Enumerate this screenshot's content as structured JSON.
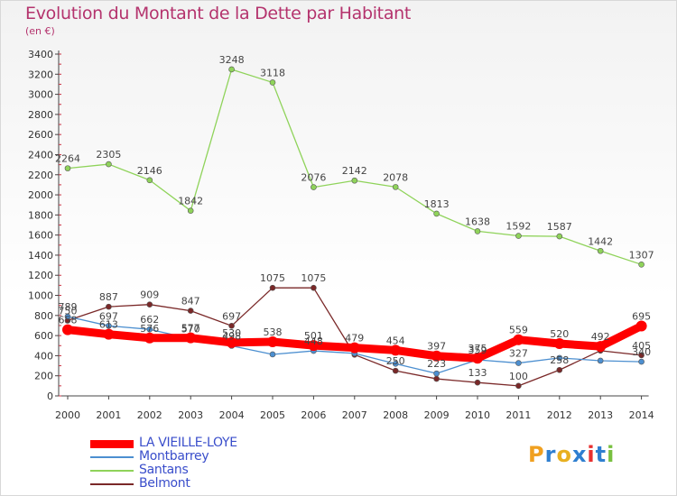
{
  "title": "Evolution du Montant de la Dette par Habitant",
  "unit": "(en €)",
  "logo": {
    "text": "Proxiti",
    "colors": [
      "#f0a020",
      "#2f7fd0",
      "#e8b020",
      "#2f7fd0",
      "#e83030",
      "#2f7fd0",
      "#78c040"
    ]
  },
  "chart_data": {
    "type": "line",
    "title": "Evolution du Montant de la Dette par Habitant",
    "ylabel": "(en €)",
    "xlabel": "",
    "x": [
      "2000",
      "2001",
      "2002",
      "2003",
      "2004",
      "2005",
      "2006",
      "2007",
      "2008",
      "2009",
      "2010",
      "2011",
      "2012",
      "2013",
      "2014"
    ],
    "yticks": [
      0,
      200,
      400,
      600,
      800,
      1000,
      1200,
      1400,
      1600,
      1800,
      2000,
      2200,
      2400,
      2600,
      2800,
      3000,
      3200,
      3400
    ],
    "ylim": [
      0,
      3400
    ],
    "grid": false,
    "legend": "bottom-left",
    "series": [
      {
        "name": "Santans",
        "color": "#8fd35a",
        "width": 1.3,
        "dot": 3,
        "values": [
          2264,
          2305,
          2146,
          1842,
          3248,
          3118,
          2076,
          2142,
          2078,
          1813,
          1638,
          1592,
          1587,
          1442,
          1307
        ],
        "labels": [
          "2264",
          "2305",
          "2146",
          "1842",
          "3248",
          "3118",
          "2076",
          "2142",
          "2078",
          "1813",
          "1638",
          "1592",
          "1587",
          "1442",
          "1307"
        ]
      },
      {
        "name": "Belmont",
        "color": "#7a2828",
        "width": 1.3,
        "dot": 3,
        "values": [
          750,
          887,
          909,
          847,
          697,
          1075,
          1075,
          410,
          250,
          170,
          133,
          100,
          258,
          450,
          405
        ],
        "labels": [
          "750",
          "887",
          "909",
          "847",
          "697",
          "1075",
          "1075",
          "",
          "250",
          "",
          "133",
          "100",
          "258",
          "",
          "405"
        ]
      },
      {
        "name": "Montbarrey",
        "color": "#4c8fd0",
        "width": 1.3,
        "dot": 3,
        "values": [
          789,
          697,
          662,
          570,
          498,
          413,
          448,
          423,
          320,
          223,
          359,
          327,
          378,
          350,
          340
        ],
        "labels": [
          "789",
          "697",
          "662",
          "570",
          "498",
          "",
          "448",
          "",
          "",
          "223",
          "359",
          "327",
          "",
          "",
          "340"
        ]
      },
      {
        "name": "LA VIEILLE-LOYE",
        "color": "#ff0000",
        "width": 9,
        "dot": 6,
        "values": [
          658,
          613,
          576,
          577,
          530,
          538,
          501,
          479,
          454,
          397,
          375,
          559,
          520,
          492,
          695
        ],
        "labels": [
          "658",
          "613",
          "576",
          "577",
          "530",
          "538",
          "501",
          "479",
          "454",
          "397",
          "375",
          "559",
          "520",
          "492",
          "695"
        ]
      }
    ],
    "legend_order": [
      "LA VIEILLE-LOYE",
      "Montbarrey",
      "Santans",
      "Belmont"
    ]
  }
}
